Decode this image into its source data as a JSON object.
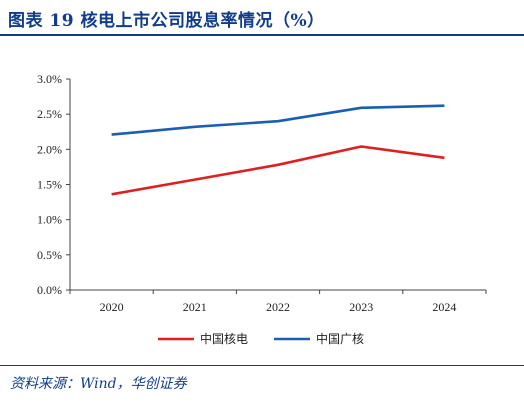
{
  "header": {
    "title": "图表 19    核电上市公司股息率情况（%）"
  },
  "source": "资料来源：Wind，华创证券",
  "chart_data": {
    "type": "line",
    "title": "",
    "xlabel": "",
    "ylabel": "",
    "x": [
      "2020",
      "2021",
      "2022",
      "2023",
      "2024"
    ],
    "ylim": [
      0,
      3.0
    ],
    "yticks": [
      "0.0%",
      "0.5%",
      "1.0%",
      "1.5%",
      "2.0%",
      "2.5%",
      "3.0%"
    ],
    "ytick_values": [
      0,
      0.5,
      1.0,
      1.5,
      2.0,
      2.5,
      3.0
    ],
    "grid": false,
    "legend": "bottom-center",
    "series": [
      {
        "name": "中国核电",
        "color": "#e02020",
        "values": [
          1.36,
          1.57,
          1.78,
          2.04,
          1.88
        ]
      },
      {
        "name": "中国广核",
        "color": "#1a5fb4",
        "values": [
          2.21,
          2.32,
          2.4,
          2.59,
          2.62
        ]
      }
    ]
  }
}
